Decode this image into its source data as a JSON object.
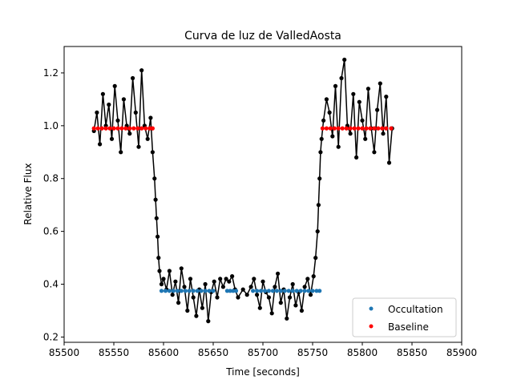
{
  "chart_data": {
    "type": "scatter",
    "title": "Curva de luz de ValledAosta",
    "xlabel": "Time [seconds]",
    "ylabel": "Relative Flux",
    "xlim": [
      85500,
      85900
    ],
    "ylim": [
      0.18,
      1.3
    ],
    "xticks": [
      85500,
      85550,
      85600,
      85650,
      85700,
      85750,
      85800,
      85850,
      85900
    ],
    "yticks": [
      0.2,
      0.4,
      0.6,
      0.8,
      1.0,
      1.2
    ],
    "ytick_labels": [
      "0.2",
      "0.4",
      "0.6",
      "0.8",
      "1.0",
      "1.2"
    ],
    "grid": false,
    "legend_position": "lower right",
    "series": [
      {
        "name": "",
        "style": "line-markers",
        "color": "#000000",
        "x": [
          85530,
          85533,
          85536,
          85539,
          85542,
          85545,
          85548,
          85551,
          85554,
          85557,
          85560,
          85563,
          85566,
          85569,
          85572,
          85575,
          85578,
          85581,
          85584,
          85587,
          85589,
          85591,
          85592,
          85593,
          85594,
          85595,
          85596,
          85598,
          85600,
          85603,
          85606,
          85609,
          85612,
          85615,
          85618,
          85621,
          85624,
          85627,
          85630,
          85633,
          85636,
          85639,
          85642,
          85645,
          85648,
          85651,
          85654,
          85657,
          85660,
          85663,
          85666,
          85669,
          85672,
          85675,
          85680,
          85684,
          85688,
          85691,
          85694,
          85697,
          85700,
          85703,
          85706,
          85709,
          85712,
          85715,
          85718,
          85721,
          85724,
          85727,
          85730,
          85733,
          85736,
          85739,
          85742,
          85745,
          85748,
          85751,
          85753,
          85755,
          85756,
          85757,
          85758,
          85759,
          85761,
          85764,
          85767,
          85770,
          85773,
          85776,
          85779,
          85782,
          85785,
          85788,
          85791,
          85794,
          85797,
          85800,
          85803,
          85806,
          85809,
          85812,
          85815,
          85818,
          85821,
          85824,
          85827,
          85830
        ],
        "y": [
          0.98,
          1.05,
          0.93,
          1.12,
          1.0,
          1.08,
          0.95,
          1.15,
          1.02,
          0.9,
          1.1,
          1.0,
          0.97,
          1.18,
          1.05,
          0.92,
          1.21,
          1.0,
          0.95,
          1.03,
          0.9,
          0.8,
          0.72,
          0.65,
          0.58,
          0.5,
          0.45,
          0.4,
          0.42,
          0.38,
          0.45,
          0.36,
          0.41,
          0.33,
          0.46,
          0.39,
          0.3,
          0.42,
          0.35,
          0.28,
          0.38,
          0.31,
          0.4,
          0.26,
          0.37,
          0.41,
          0.35,
          0.42,
          0.39,
          0.42,
          0.41,
          0.43,
          0.38,
          0.35,
          0.38,
          0.36,
          0.39,
          0.42,
          0.36,
          0.31,
          0.41,
          0.37,
          0.35,
          0.29,
          0.39,
          0.44,
          0.33,
          0.38,
          0.27,
          0.35,
          0.4,
          0.32,
          0.37,
          0.3,
          0.39,
          0.42,
          0.36,
          0.43,
          0.5,
          0.6,
          0.7,
          0.8,
          0.9,
          0.95,
          1.02,
          1.1,
          1.05,
          0.96,
          1.15,
          0.92,
          1.18,
          1.25,
          1.0,
          0.97,
          1.12,
          0.88,
          1.09,
          1.02,
          0.95,
          1.14,
          0.99,
          0.9,
          1.06,
          1.16,
          0.97,
          1.11,
          0.86,
          0.99
        ]
      },
      {
        "name": "Occultation",
        "style": "markers",
        "color": "#1f77b4",
        "x": [
          85598,
          85602,
          85606,
          85610,
          85614,
          85618,
          85622,
          85626,
          85630,
          85634,
          85638,
          85642,
          85646,
          85650,
          85664,
          85667,
          85670,
          85673,
          85690,
          85694,
          85698,
          85702,
          85706,
          85710,
          85714,
          85718,
          85722,
          85726,
          85730,
          85734,
          85738,
          85742,
          85746,
          85750,
          85754,
          85757
        ],
        "y": [
          0.375,
          0.375,
          0.375,
          0.375,
          0.375,
          0.375,
          0.375,
          0.375,
          0.375,
          0.375,
          0.375,
          0.375,
          0.375,
          0.375,
          0.375,
          0.375,
          0.375,
          0.375,
          0.375,
          0.375,
          0.375,
          0.375,
          0.375,
          0.375,
          0.375,
          0.375,
          0.375,
          0.375,
          0.375,
          0.375,
          0.375,
          0.375,
          0.375,
          0.375,
          0.375,
          0.375
        ]
      },
      {
        "name": "Baseline",
        "style": "markers",
        "color": "#ff0000",
        "x": [
          85530,
          85534,
          85538,
          85542,
          85546,
          85550,
          85554,
          85558,
          85562,
          85566,
          85570,
          85574,
          85578,
          85582,
          85586,
          85589,
          85760,
          85764,
          85768,
          85772,
          85776,
          85780,
          85784,
          85788,
          85792,
          85796,
          85800,
          85804,
          85808,
          85812,
          85816,
          85820,
          85824,
          85829
        ],
        "y": [
          0.99,
          0.99,
          0.99,
          0.99,
          0.99,
          0.99,
          0.99,
          0.99,
          0.99,
          0.99,
          0.99,
          0.99,
          0.99,
          0.99,
          0.99,
          0.99,
          0.99,
          0.99,
          0.99,
          0.99,
          0.99,
          0.99,
          0.99,
          0.99,
          0.99,
          0.99,
          0.99,
          0.99,
          0.99,
          0.99,
          0.99,
          0.99,
          0.99,
          0.99
        ]
      }
    ]
  }
}
